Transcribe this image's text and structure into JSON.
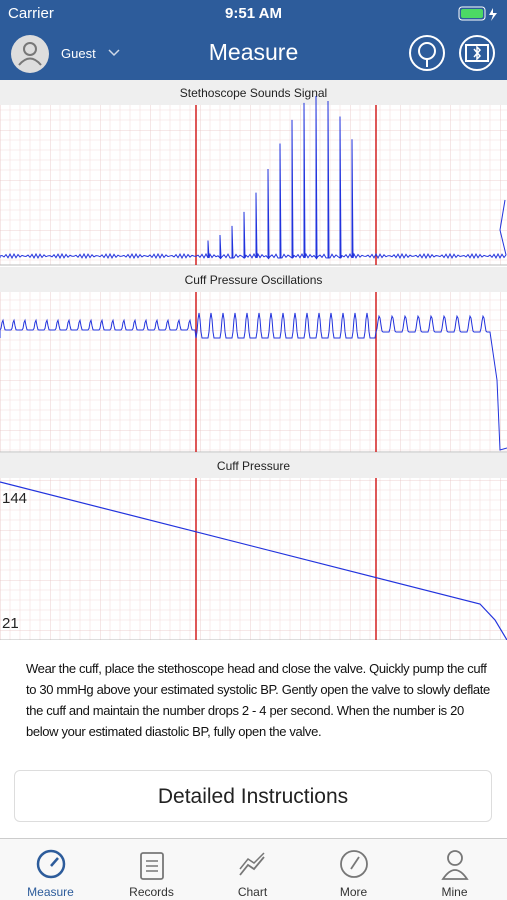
{
  "status_bar": {
    "carrier": "Carrier",
    "time": "9:51 AM"
  },
  "header": {
    "user": "Guest",
    "title": "Measure"
  },
  "panels": [
    {
      "title": "Stethoscope Sounds Signal"
    },
    {
      "title": "Cuff Pressure Oscillations"
    },
    {
      "title": "Cuff Pressure",
      "labels": [
        "144",
        "21"
      ]
    }
  ],
  "instructions": "Wear the cuff, place the stethoscope head and close the valve. Quickly pump the cuff to 30 mmHg above your estimated systolic BP. Gently open the valve to slowly deflate the cuff and maintain the number drops 2 - 4 per second. When the number is 20 below your estimated diastolic BP, fully open the valve.",
  "button": "Detailed Instructions",
  "tabs": [
    "Measure",
    "Records",
    "Chart",
    "More",
    "Mine"
  ]
}
